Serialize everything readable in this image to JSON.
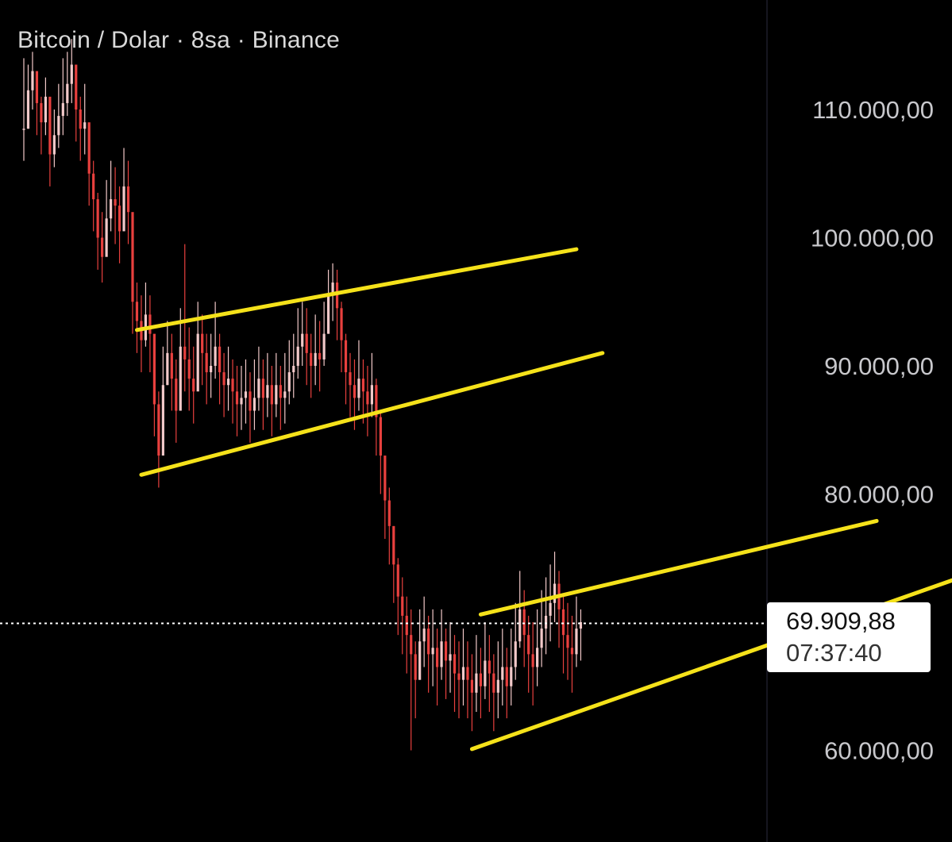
{
  "header": {
    "title": "Bitcoin / Dolar · 8sa · Binance"
  },
  "current_price": {
    "value": "69.909,88",
    "countdown": "07:37:40"
  },
  "colors": {
    "background": "#000000",
    "candle": "#e8403e",
    "candle_light": "#f2c9c9",
    "trendline": "#f5e21a",
    "axis_text": "#c8c8cc",
    "price_line": "#ffffff",
    "axis_divider": "#1a1a26"
  },
  "chart_data": {
    "type": "line",
    "title": "Bitcoin / Dolar · 8sa · Binance",
    "xlabel": "",
    "ylabel": "",
    "ylim": [
      53000,
      117000
    ],
    "grid": false,
    "y_ticks": [
      {
        "value": 110000,
        "label": "110.000,00"
      },
      {
        "value": 100000,
        "label": "100.000,00"
      },
      {
        "value": 90000,
        "label": "90.000,00"
      },
      {
        "value": 80000,
        "label": "80.000,00"
      },
      {
        "value": 60000,
        "label": "60.000,00"
      }
    ],
    "current_price_value": 69909.88,
    "x_range": [
      0,
      150
    ],
    "series": [
      {
        "values": [
          108500,
          111500,
          113000,
          110500,
          109000,
          111000,
          106500,
          108000,
          109500,
          110500,
          112000,
          113500,
          110000,
          108500,
          109000,
          105000,
          103000,
          100000,
          98500,
          101500,
          103000,
          102500,
          100500,
          104000,
          102000,
          95000,
          93500,
          92000,
          94000,
          92500,
          87000,
          83000,
          88500,
          91000,
          89000,
          86500,
          91500,
          90500,
          89000,
          88000,
          92500,
          91000,
          89500,
          90000,
          91500,
          89500,
          88500,
          89000,
          88000,
          87000,
          87500,
          88000,
          86500,
          87500,
          89000,
          87500,
          88500,
          87000,
          88500,
          87500,
          88000,
          89500,
          90000,
          91500,
          92500,
          91000,
          90000,
          91000,
          90500,
          92500,
          95500,
          96500,
          94500,
          92000,
          89500,
          88500,
          87500,
          89000,
          88000,
          87000,
          88500,
          86000,
          83000,
          79500,
          77500,
          74500,
          72000,
          70500,
          69000,
          67500,
          65500,
          68500,
          69500,
          67500,
          68000,
          66500,
          68500,
          67000,
          67500,
          66000,
          65500,
          66500,
          65500,
          64500,
          66000,
          65000,
          67000,
          66000,
          64500,
          65500,
          66500,
          65000,
          66500,
          68500,
          71000,
          69000,
          67500,
          66500,
          68000,
          69500,
          70500,
          71500,
          73000,
          71000,
          69000,
          68000,
          67500,
          69500,
          70000
        ],
        "highs": [
          114000,
          113500,
          114500,
          112500,
          111000,
          112500,
          109500,
          110000,
          112000,
          114000,
          114500,
          115500,
          113500,
          111000,
          112000,
          108500,
          106000,
          103500,
          102000,
          104500,
          106000,
          105500,
          104000,
          107000,
          106000,
          99000,
          96500,
          95500,
          96500,
          95500,
          91000,
          88000,
          91500,
          93500,
          92500,
          90500,
          94500,
          99500,
          93000,
          91500,
          95000,
          94000,
          92500,
          92500,
          95000,
          92500,
          91000,
          91500,
          90500,
          90000,
          90000,
          90500,
          89500,
          90500,
          91500,
          90500,
          91000,
          90000,
          91000,
          90000,
          91000,
          92000,
          92500,
          94500,
          95000,
          94500,
          92500,
          94000,
          93500,
          95000,
          97500,
          98000,
          97500,
          95000,
          92500,
          91000,
          90500,
          92000,
          90500,
          90000,
          91000,
          89000,
          86500,
          82500,
          80500,
          77500,
          75000,
          73500,
          72000,
          71000,
          68500,
          71000,
          72000,
          70500,
          71000,
          69500,
          71000,
          69500,
          70000,
          69000,
          68500,
          69500,
          68500,
          67500,
          69000,
          68000,
          70000,
          69000,
          67500,
          68500,
          69500,
          68000,
          69500,
          71500,
          74000,
          72500,
          70500,
          70000,
          71000,
          72500,
          73500,
          74500,
          75500,
          74000,
          72000,
          71500,
          70500,
          72000,
          71000
        ],
        "lows": [
          106000,
          108500,
          110000,
          108000,
          106500,
          108000,
          104000,
          105500,
          107000,
          108000,
          109500,
          110500,
          107500,
          106000,
          106500,
          102500,
          100500,
          97500,
          96500,
          99000,
          100500,
          99500,
          98000,
          101500,
          99500,
          92500,
          91000,
          89500,
          91500,
          89500,
          84500,
          80500,
          85500,
          88500,
          86500,
          84000,
          89000,
          88000,
          86500,
          85500,
          89500,
          88500,
          87000,
          87500,
          89000,
          87000,
          86000,
          86500,
          85500,
          84500,
          85000,
          85500,
          84000,
          85000,
          86500,
          85000,
          86000,
          84500,
          86000,
          85000,
          85500,
          87000,
          87500,
          89000,
          90000,
          88500,
          87500,
          88500,
          88000,
          90000,
          92500,
          93500,
          92000,
          89500,
          87000,
          86000,
          85000,
          86500,
          85500,
          84500,
          86000,
          83000,
          80000,
          76500,
          74500,
          71500,
          69000,
          67500,
          66000,
          60000,
          62500,
          65500,
          66500,
          64500,
          65000,
          63500,
          65500,
          64000,
          64500,
          63000,
          62500,
          63500,
          62500,
          61500,
          63000,
          62500,
          64000,
          63000,
          61500,
          62500,
          63500,
          62500,
          63500,
          65500,
          68000,
          66500,
          64500,
          63500,
          65000,
          66500,
          67500,
          68500,
          70000,
          68000,
          66000,
          65500,
          64500,
          66500,
          67000
        ]
      }
    ],
    "trendlines": [
      {
        "from": [
          26,
          92800
        ],
        "to": [
          127,
          99100
        ]
      },
      {
        "from": [
          27,
          81500
        ],
        "to": [
          133,
          91000
        ]
      },
      {
        "from": [
          105,
          70600
        ],
        "to": [
          196,
          77900
        ]
      },
      {
        "from": [
          103,
          60100
        ],
        "to": [
          217,
          73700
        ]
      }
    ]
  }
}
